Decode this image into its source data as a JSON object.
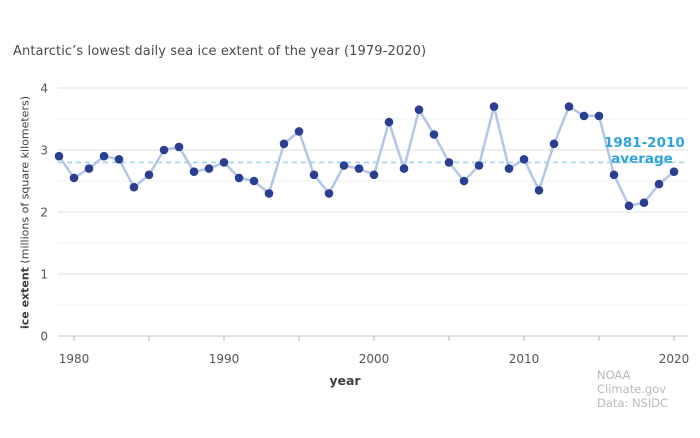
{
  "chart": {
    "title": "Antarctic’s lowest daily sea ice extent of the year (1979-2020)",
    "source_line1": "NOAA Climate.gov",
    "source_line2": "Data: NSIDC"
  },
  "chart_data": {
    "type": "line",
    "title": "Antarctic’s lowest daily sea ice extent of the year (1979-2020)",
    "xlabel": "year",
    "ylabel_bold": "ice extent",
    "ylabel_units": " (millions of square kilometers)",
    "series_name": "Antarctic lowest daily sea ice extent",
    "x": [
      1979,
      1980,
      1981,
      1982,
      1983,
      1984,
      1985,
      1986,
      1987,
      1988,
      1989,
      1990,
      1991,
      1992,
      1993,
      1994,
      1995,
      1996,
      1997,
      1998,
      1999,
      2000,
      2001,
      2002,
      2003,
      2004,
      2005,
      2006,
      2007,
      2008,
      2009,
      2010,
      2011,
      2012,
      2013,
      2014,
      2015,
      2016,
      2017,
      2018,
      2019,
      2020
    ],
    "values": [
      2.9,
      2.55,
      2.7,
      2.9,
      2.85,
      2.4,
      2.6,
      3.0,
      3.05,
      2.65,
      2.7,
      2.8,
      2.55,
      2.5,
      2.3,
      3.1,
      3.3,
      2.6,
      2.3,
      2.75,
      2.7,
      2.6,
      3.45,
      2.7,
      3.65,
      3.25,
      2.8,
      2.5,
      2.75,
      3.7,
      2.7,
      2.85,
      2.35,
      3.1,
      3.7,
      3.55,
      3.55,
      2.6,
      2.1,
      2.15,
      2.45,
      2.65
    ],
    "xlim": [
      1979,
      2020
    ],
    "ylim": [
      0,
      4
    ],
    "yticks": [
      0,
      1,
      2,
      3,
      4
    ],
    "yticks_minor": [
      0.5,
      1.5,
      2.5,
      3.5
    ],
    "xticks_labeled": [
      1980,
      1990,
      2000,
      2010,
      2020
    ],
    "xticks_minor": [
      1985,
      1995,
      2005,
      2015
    ],
    "grid": "on",
    "legend_position": "none",
    "average_line": {
      "value": 2.8,
      "label_line1": "1981-2010",
      "label_line2": "average"
    },
    "colors": {
      "marker": "#2a3f8f",
      "line": "#b3c6e8",
      "average_line": "#9fd5f2",
      "average_text": "#30a3de",
      "grid_major": "#dfdfdf",
      "grid_minor": "#efefef",
      "axis_line": "#c9c9c9",
      "tick_mark": "#b4b4b4",
      "tick_text": "#555555",
      "title_text": "#4a4a4a",
      "source_text": "#b9b9b9"
    }
  }
}
